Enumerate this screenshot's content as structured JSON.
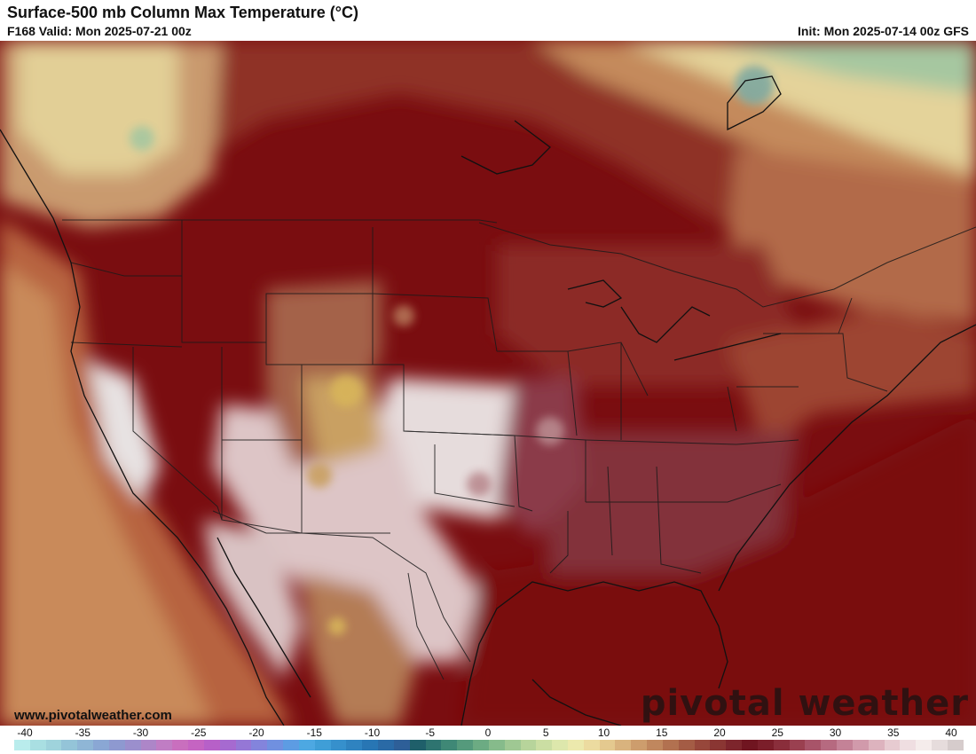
{
  "header": {
    "title": "Surface-500 mb Column Max Temperature (°C)",
    "valid": "F168 Valid: Mon 2025-07-21 00z",
    "init": "Init: Mon 2025-07-14 00z GFS"
  },
  "footer": {
    "site": "www.pivotalweather.com",
    "logo": "pivotal weather"
  },
  "legend": {
    "ticks": [
      "-40",
      "-35",
      "-30",
      "-25",
      "-20",
      "-15",
      "-10",
      "-5",
      "0",
      "5",
      "10",
      "15",
      "20",
      "25",
      "30",
      "35",
      "40"
    ],
    "colors": [
      "#b9ecec",
      "#a9dfe2",
      "#9fd3dc",
      "#94c4d8",
      "#8fb6d6",
      "#8aa7d4",
      "#8e99d0",
      "#9b8fcd",
      "#ad86c8",
      "#c07dc4",
      "#c96fbe",
      "#c564c2",
      "#b760c8",
      "#a66ad0",
      "#9577d6",
      "#8384dc",
      "#7090e0",
      "#5d9ce3",
      "#4da8e2",
      "#3f9ed7",
      "#3690cc",
      "#2f83c0",
      "#2876b4",
      "#2a6aa6",
      "#2e5f98",
      "#1f5f6a",
      "#2e7470",
      "#3f8876",
      "#559a7c",
      "#6cab83",
      "#86bb8b",
      "#9fc893",
      "#b7d49b",
      "#cbdea3",
      "#dde7ac",
      "#ece9ad",
      "#ecdba0",
      "#e4c98f",
      "#d9b37e",
      "#cd9d6d",
      "#c0875e",
      "#b27150",
      "#a45c45",
      "#97473b",
      "#8a3633",
      "#7d252c",
      "#701520",
      "#7b1e2a",
      "#8a2e3b",
      "#9a4050",
      "#a85469",
      "#b66a80",
      "#c48297",
      "#d19aab",
      "#ddb3be",
      "#e7cbd1",
      "#efdee1",
      "#f5eceb",
      "#e6dcdc",
      "#d6cccc"
    ],
    "unit": "°C"
  },
  "map": {
    "variable": "Surface-500 mb Column Max Temperature",
    "region": "CONUS",
    "colors": {
      "hot": "#7a0d10",
      "warm": "#9a3a2e",
      "mild": "#c98a55",
      "cool": "#e8d9a3",
      "cold": "#7fa9a0",
      "extreme": "#e9e2e0"
    }
  }
}
